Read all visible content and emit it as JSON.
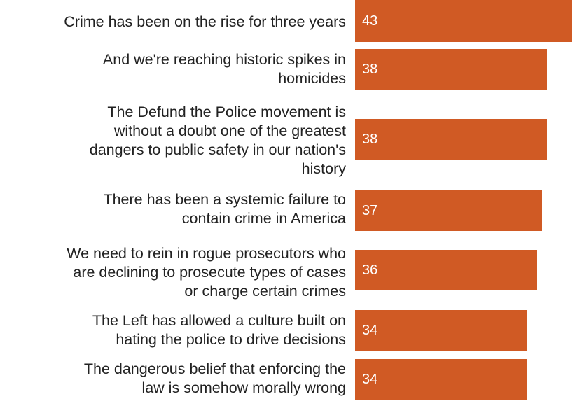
{
  "chart_data": {
    "type": "bar",
    "orientation": "horizontal",
    "categories": [
      "Crime has been on the rise for three years",
      "And we're reaching historic spikes in homicides",
      "The Defund the Police movement is without a doubt one of the greatest dangers to public safety in our nation's history",
      "There has been a systemic failure to contain crime in America",
      "We need to rein in rogue prosecutors who are declining to prosecute types of cases or charge certain crimes",
      "The Left has allowed a culture built on hating the police to drive decisions",
      "The dangerous belief that enforcing the law is somehow morally wrong"
    ],
    "label_lines": [
      [
        "Crime has been on the rise for three years"
      ],
      [
        "And we're reaching historic spikes in",
        "homicides"
      ],
      [
        "The Defund the Police movement is",
        "without a doubt one of the greatest",
        "dangers to public safety in our nation's",
        "history"
      ],
      [
        "There has been a systemic failure to",
        "contain crime in America"
      ],
      [
        "We need to rein in rogue prosecutors who",
        "are declining to prosecute types of cases",
        "or charge certain crimes"
      ],
      [
        "The Left has allowed a culture built on",
        "hating the police to drive decisions"
      ],
      [
        "The dangerous belief that enforcing the",
        "law is somehow morally wrong"
      ]
    ],
    "values": [
      43,
      38,
      38,
      37,
      36,
      34,
      34
    ],
    "xlim": [
      0,
      43
    ],
    "bar_color": "#d05a24",
    "value_label_color": "#ffffff",
    "grid": false,
    "legend": "none",
    "title": "",
    "xlabel": "",
    "ylabel": ""
  }
}
